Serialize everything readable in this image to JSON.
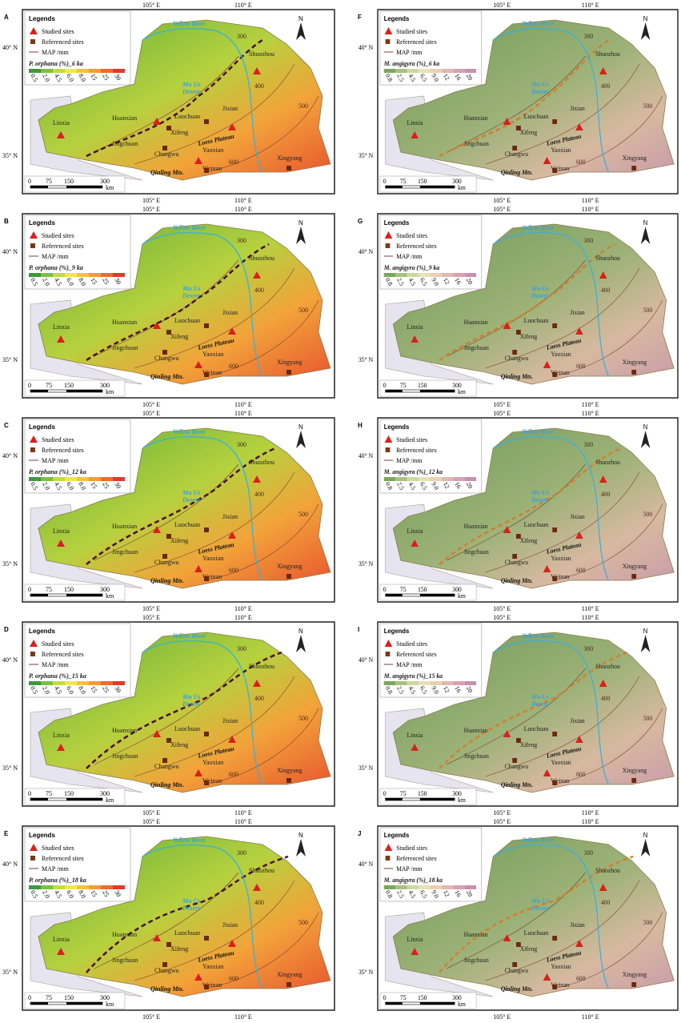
{
  "legend_title": "Legends",
  "legend_items": [
    "Studied sites",
    "Referenced sites",
    "MAP /mm"
  ],
  "lon_labels": [
    "105° E",
    "110° E"
  ],
  "lat_labels": [
    "40° N",
    "35° N"
  ],
  "north": "N",
  "scale_bar": [
    "0",
    "75",
    "150",
    "300",
    "km"
  ],
  "isohyets": [
    "300",
    "400",
    "500",
    "600"
  ],
  "places": [
    "Yellow River",
    "Mu Us",
    "Desert",
    "Shuozhou",
    "Linxia",
    "Huanxian",
    "Luochuan",
    "Xifeng",
    "Jixian",
    "Jingchuan",
    "Changwu",
    "Yaoxian",
    "Weinan",
    "Xingyang",
    "Loess Plateau",
    "Qinling Mts."
  ],
  "columns": [
    {
      "legend_scale": [
        "0.5",
        "2.0",
        "4.5",
        "6.0",
        "8.0",
        "15",
        "25",
        "30"
      ],
      "panels": [
        {
          "letter": "A",
          "title": "P. orphana (%)_6 ka"
        },
        {
          "letter": "B",
          "title": "P. orphana (%)_9 ka"
        },
        {
          "letter": "C",
          "title": "P. orphana (%)_12 ka"
        },
        {
          "letter": "D",
          "title": "P. orphana (%)_15 ka"
        },
        {
          "letter": "E",
          "title": "P. orphana (%)_18 ka"
        }
      ]
    },
    {
      "legend_scale": [
        "0.8",
        "2.5",
        "4.5",
        "6.5",
        "9.0",
        "12",
        "16",
        "20"
      ],
      "panels": [
        {
          "letter": "F",
          "title": "M. angigyra (%)_6 ka"
        },
        {
          "letter": "G",
          "title": "M. angigyra (%)_9 ka"
        },
        {
          "letter": "H",
          "title": "M. angigyra (%)_12 ka"
        },
        {
          "letter": "I",
          "title": "M. angigyra (%)_15 ka"
        },
        {
          "letter": "J",
          "title": "M. angigyra (%)_18 ka"
        }
      ]
    }
  ]
}
